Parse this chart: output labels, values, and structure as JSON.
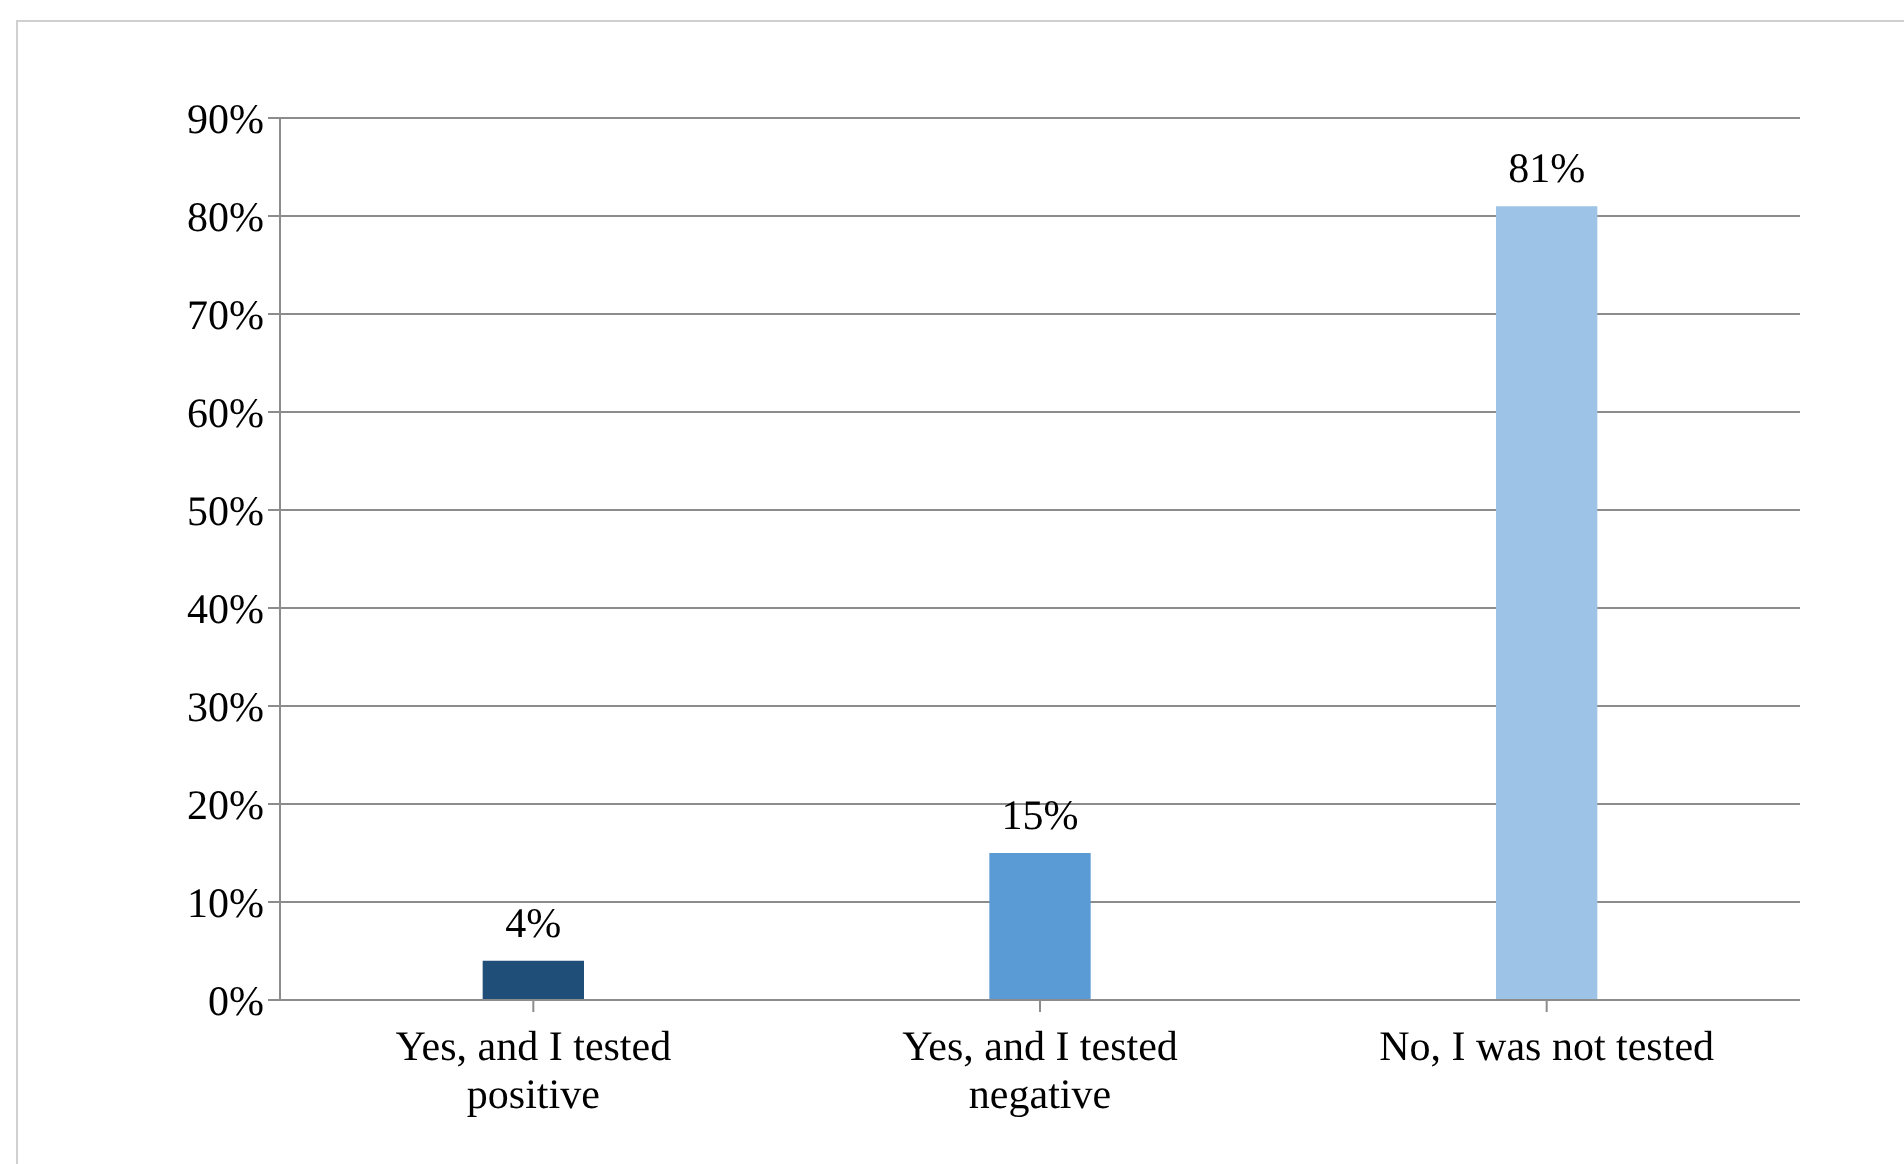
{
  "chart_data": {
    "type": "bar",
    "categories": [
      "Yes, and I tested positive",
      "Yes, and I tested negative",
      "No, I was not tested"
    ],
    "values": [
      4,
      15,
      81
    ],
    "colors": [
      "#1f4e79",
      "#5b9bd5",
      "#9dc3e6"
    ],
    "value_labels": [
      "4%",
      "15%",
      "81%"
    ],
    "ylim": [
      0,
      90
    ],
    "yticks": [
      {
        "value": 0,
        "label": "0%"
      },
      {
        "value": 10,
        "label": "10%"
      },
      {
        "value": 20,
        "label": "20%"
      },
      {
        "value": 30,
        "label": "30%"
      },
      {
        "value": 40,
        "label": "40%"
      },
      {
        "value": 50,
        "label": "50%"
      },
      {
        "value": 60,
        "label": "60%"
      },
      {
        "value": 70,
        "label": "70%"
      },
      {
        "value": 80,
        "label": "80%"
      },
      {
        "value": 90,
        "label": "90%"
      }
    ],
    "grid": "y"
  }
}
